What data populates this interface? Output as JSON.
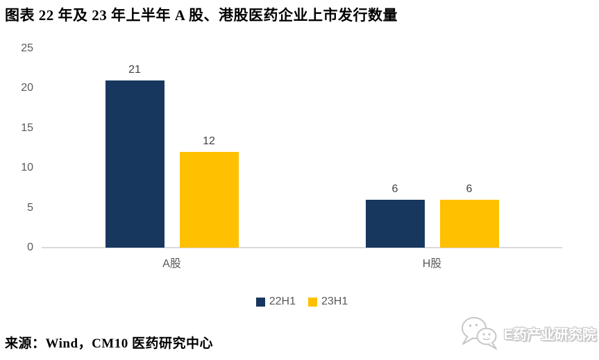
{
  "header": {
    "title": "图表  22 年及 23 年上半年 A 股、港股医药企业上市发行数量"
  },
  "chart_data": {
    "type": "bar",
    "title": "22 年及 23 年上半年 A 股、港股医药企业上市发行数量",
    "categories": [
      "A股",
      "H股"
    ],
    "series": [
      {
        "name": "22H1",
        "color": "#17375E",
        "values": [
          21,
          6
        ]
      },
      {
        "name": "23H1",
        "color": "#FFC000",
        "values": [
          12,
          6
        ]
      }
    ],
    "ylim": [
      0,
      25
    ],
    "yticks": [
      0,
      5,
      10,
      15,
      20,
      25
    ],
    "grid": false,
    "bar_labels": true,
    "legend_position": "bottom"
  },
  "footer": {
    "source": "来源：Wind，CM10 医药研究中心"
  },
  "watermark": {
    "icon": "wechat-icon",
    "text": "E药产业研究院"
  },
  "colors": {
    "series_22H1": "#17375E",
    "series_23H1": "#FFC000",
    "axis_text": "#595959",
    "bar_label_text": "#404040",
    "axis_line": "#D9D9D9",
    "watermark": "#C6C6C6"
  }
}
